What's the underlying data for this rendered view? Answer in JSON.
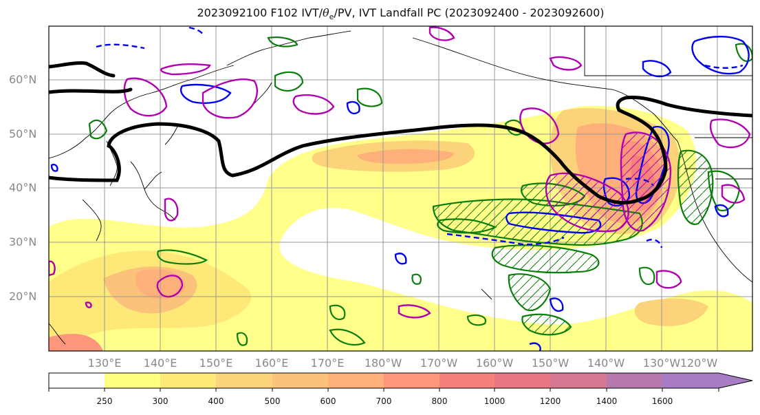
{
  "title": {
    "prefix": "2023092100 F102 IVT/",
    "theta": "θ",
    "theta_sub": "e",
    "suffix": "/PV, IVT Landfall PC (2023092400 - 2023092600)"
  },
  "map": {
    "lat_labels": [
      "60°N",
      "50°N",
      "40°N",
      "30°N",
      "20°N"
    ],
    "lon_labels": [
      "130°E",
      "140°E",
      "150°E",
      "160°E",
      "170°E",
      "180°W",
      "170°W",
      "160°W",
      "150°W",
      "140°W",
      "130°W",
      "120°W"
    ],
    "extent": {
      "lon_min": 120,
      "lon_max": 247,
      "lat_min": 10,
      "lat_max": 70
    }
  },
  "colorbar": {
    "levels": [
      "250",
      "300",
      "400",
      "500",
      "600",
      "700",
      "800",
      "1000",
      "1200",
      "1400",
      "1600"
    ],
    "colors": [
      "#ffff80",
      "#fde878",
      "#fcd27a",
      "#fbc27b",
      "#fdb07a",
      "#fd967a",
      "#f5807c",
      "#ea7683",
      "#d77893",
      "#b57aab",
      "#a67cc4"
    ],
    "extend": "max"
  },
  "colors": {
    "ivt_low": "#ffff80",
    "ivt_mid": "#fdb07a",
    "ivt_high": "#f58a7a",
    "theta_e_contour": "#0a7d0a",
    "pv_contour": "#0000ee",
    "landfall_pc_contour": "#b000b0",
    "landfall_boundary": "#000000"
  }
}
